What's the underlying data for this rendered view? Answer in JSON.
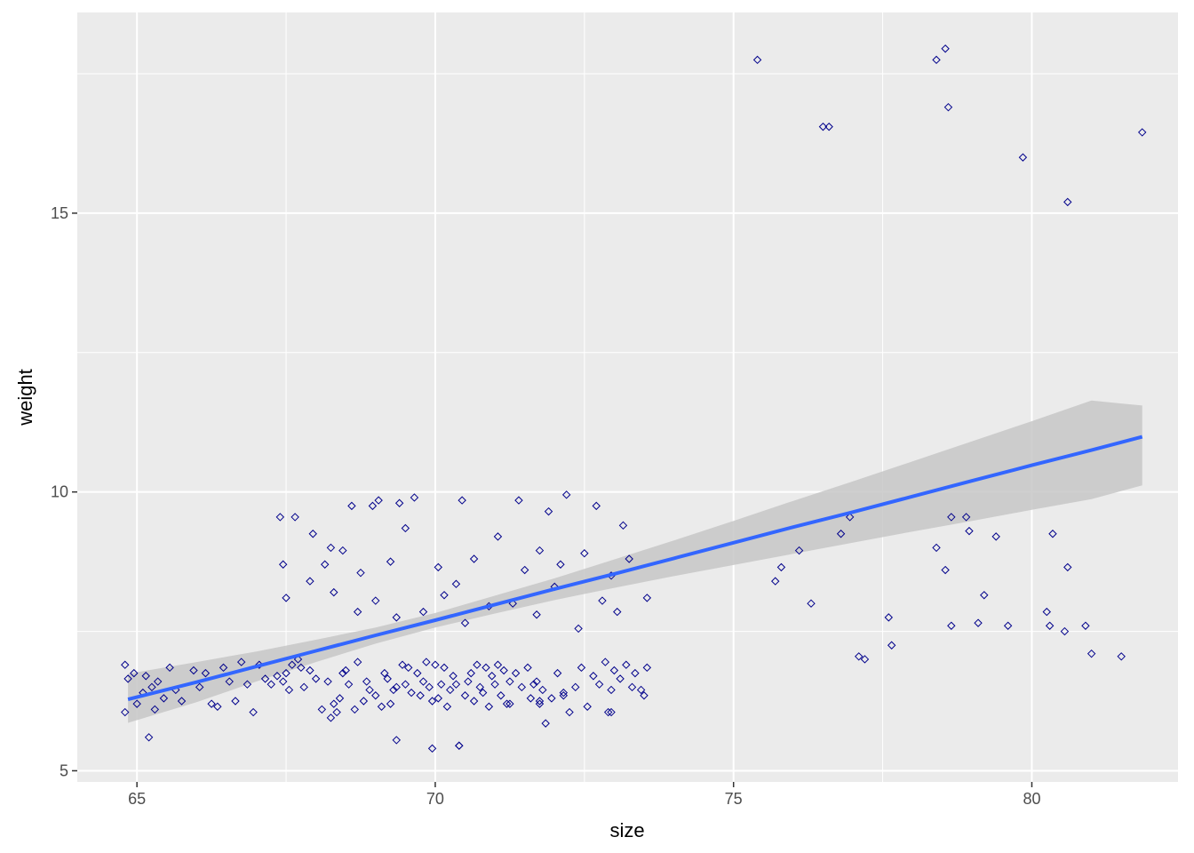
{
  "chart_data": {
    "type": "scatter",
    "title": "",
    "xlabel": "size",
    "ylabel": "weight",
    "xlim": [
      64.0,
      82.45
    ],
    "ylim": [
      4.8,
      18.6
    ],
    "x_ticks": [
      65,
      70,
      75,
      80
    ],
    "y_ticks": [
      5,
      10,
      15
    ],
    "grid": true,
    "legend": "none",
    "colors": {
      "panel_background": "#ebebeb",
      "grid": "#ffffff",
      "point_stroke": "#00008b",
      "trend_line": "#3366ff",
      "confidence_band": "#c7c7c7",
      "axis_text": "#4d4d4d"
    },
    "trend_line": {
      "method": "lm",
      "x": [
        64.85,
        66.0,
        67.0,
        68.0,
        69.0,
        70.0,
        71.0,
        72.0,
        73.0,
        74.0,
        75.0,
        76.0,
        77.0,
        78.0,
        79.0,
        80.0,
        81.0,
        81.85
      ],
      "fit": [
        6.28,
        6.59,
        6.87,
        7.15,
        7.43,
        7.7,
        7.98,
        8.26,
        8.53,
        8.81,
        9.09,
        9.37,
        9.64,
        9.92,
        10.2,
        10.48,
        10.75,
        10.99
      ],
      "upper": [
        6.74,
        6.95,
        7.14,
        7.35,
        7.57,
        7.83,
        8.14,
        8.45,
        8.79,
        9.13,
        9.48,
        9.84,
        10.19,
        10.55,
        10.91,
        11.27,
        11.64,
        11.55
      ],
      "lower": [
        5.86,
        6.23,
        6.6,
        6.95,
        7.28,
        7.57,
        7.82,
        8.06,
        8.28,
        8.49,
        8.69,
        8.89,
        9.09,
        9.29,
        9.48,
        9.68,
        9.87,
        10.12
      ]
    },
    "points": {
      "x": [
        64.8,
        64.8,
        64.85,
        64.95,
        65.0,
        65.1,
        65.15,
        65.2,
        65.25,
        65.3,
        65.35,
        65.45,
        65.55,
        65.65,
        65.75,
        65.95,
        66.05,
        66.15,
        66.25,
        66.35,
        66.45,
        66.55,
        66.65,
        66.75,
        66.85,
        66.95,
        67.05,
        67.15,
        67.25,
        67.35,
        67.45,
        67.5,
        67.55,
        67.6,
        67.7,
        67.75,
        67.8,
        67.9,
        68.0,
        68.1,
        68.2,
        68.3,
        68.35,
        68.4,
        68.45,
        68.5,
        68.55,
        68.65,
        68.7,
        68.8,
        68.85,
        68.9,
        69.0,
        69.1,
        69.15,
        69.2,
        69.25,
        69.3,
        69.35,
        69.45,
        69.5,
        69.55,
        69.6,
        69.7,
        69.75,
        69.8,
        69.85,
        69.9,
        69.95,
        70.0,
        70.05,
        70.1,
        70.15,
        70.2,
        70.25,
        70.3,
        70.35,
        70.4,
        70.5,
        70.55,
        70.6,
        70.65,
        70.7,
        70.75,
        70.8,
        70.85,
        70.9,
        70.95,
        71.0,
        71.05,
        71.1,
        71.15,
        71.2,
        71.25,
        71.35,
        71.45,
        71.55,
        71.6,
        71.65,
        71.7,
        71.75,
        71.8,
        71.85,
        71.95,
        72.05,
        72.15,
        72.25,
        72.35,
        72.45,
        72.55,
        72.65,
        72.75,
        72.85,
        72.9,
        72.95,
        73.0,
        73.1,
        73.2,
        73.3,
        73.35,
        73.45,
        73.5,
        73.55,
        67.4,
        67.65,
        67.95,
        68.25,
        68.6,
        68.95,
        69.05,
        69.4,
        69.65,
        70.45,
        71.4,
        71.9,
        72.2,
        72.7,
        73.15,
        67.45,
        68.15,
        68.45,
        68.75,
        69.25,
        69.5,
        70.05,
        70.35,
        70.65,
        71.05,
        71.5,
        71.75,
        72.1,
        72.5,
        72.95,
        73.25,
        67.5,
        67.9,
        68.3,
        68.7,
        69.0,
        69.35,
        69.8,
        70.15,
        70.5,
        70.9,
        71.3,
        71.7,
        72.0,
        72.4,
        72.8,
        73.05,
        73.55,
        68.25,
        69.35,
        69.95,
        70.4,
        71.25,
        71.75,
        72.15,
        72.95,
        75.4,
        75.7,
        75.8,
        76.1,
        76.3,
        76.5,
        76.6,
        76.8,
        76.95,
        77.1,
        77.2,
        77.6,
        77.65,
        78.4,
        78.4,
        78.55,
        78.55,
        78.6,
        78.65,
        78.65,
        78.95,
        78.9,
        79.1,
        79.2,
        79.4,
        79.6,
        79.85,
        80.25,
        80.3,
        80.35,
        80.55,
        80.6,
        80.6,
        80.9,
        81.0,
        81.5,
        81.85
      ],
      "y": [
        6.05,
        6.9,
        6.65,
        6.75,
        6.2,
        6.4,
        6.7,
        5.6,
        6.5,
        6.1,
        6.6,
        6.3,
        6.85,
        6.45,
        6.25,
        6.8,
        6.5,
        6.75,
        6.2,
        6.15,
        6.85,
        6.6,
        6.25,
        6.95,
        6.55,
        6.05,
        6.9,
        6.65,
        6.55,
        6.7,
        6.6,
        6.75,
        6.45,
        6.9,
        7.0,
        6.85,
        6.5,
        6.8,
        6.65,
        6.1,
        6.6,
        6.2,
        6.05,
        6.3,
        6.75,
        6.8,
        6.55,
        6.1,
        6.95,
        6.25,
        6.6,
        6.45,
        6.35,
        6.15,
        6.75,
        6.65,
        6.2,
        6.45,
        6.5,
        6.9,
        6.55,
        6.85,
        6.4,
        6.75,
        6.35,
        6.6,
        6.95,
        6.5,
        6.25,
        6.9,
        6.3,
        6.55,
        6.85,
        6.15,
        6.45,
        6.7,
        6.55,
        5.45,
        6.35,
        6.6,
        6.75,
        6.25,
        6.9,
        6.5,
        6.4,
        6.85,
        6.15,
        6.7,
        6.55,
        6.9,
        6.35,
        6.8,
        6.2,
        6.6,
        6.75,
        6.5,
        6.85,
        6.3,
        6.55,
        6.6,
        6.2,
        6.45,
        5.85,
        6.3,
        6.75,
        6.4,
        6.05,
        6.5,
        6.85,
        6.15,
        6.7,
        6.55,
        6.95,
        6.05,
        6.45,
        6.8,
        6.65,
        6.9,
        6.5,
        6.75,
        6.45,
        6.35,
        6.85,
        9.55,
        9.55,
        9.25,
        9.0,
        9.75,
        9.75,
        9.85,
        9.8,
        9.9,
        9.85,
        9.85,
        9.65,
        9.95,
        9.75,
        9.4,
        8.7,
        8.7,
        8.95,
        8.55,
        8.75,
        9.35,
        8.65,
        8.35,
        8.8,
        9.2,
        8.6,
        8.95,
        8.7,
        8.9,
        8.5,
        8.8,
        8.1,
        8.4,
        8.2,
        7.85,
        8.05,
        7.75,
        7.85,
        8.15,
        7.65,
        7.95,
        8.0,
        7.8,
        8.3,
        7.55,
        8.05,
        7.85,
        8.1,
        5.95,
        5.55,
        5.4,
        5.45,
        6.2,
        6.25,
        6.35,
        6.05,
        17.75,
        8.4,
        8.65,
        8.95,
        8.0,
        16.55,
        16.55,
        9.25,
        9.55,
        7.05,
        7.0,
        7.75,
        7.25,
        17.75,
        9.0,
        17.95,
        8.6,
        16.9,
        9.55,
        7.6,
        9.3,
        9.55,
        7.65,
        8.15,
        9.2,
        7.6,
        16.0,
        7.85,
        7.6,
        9.25,
        7.5,
        15.2,
        8.65,
        7.6,
        7.1,
        7.05,
        16.45
      ]
    }
  }
}
